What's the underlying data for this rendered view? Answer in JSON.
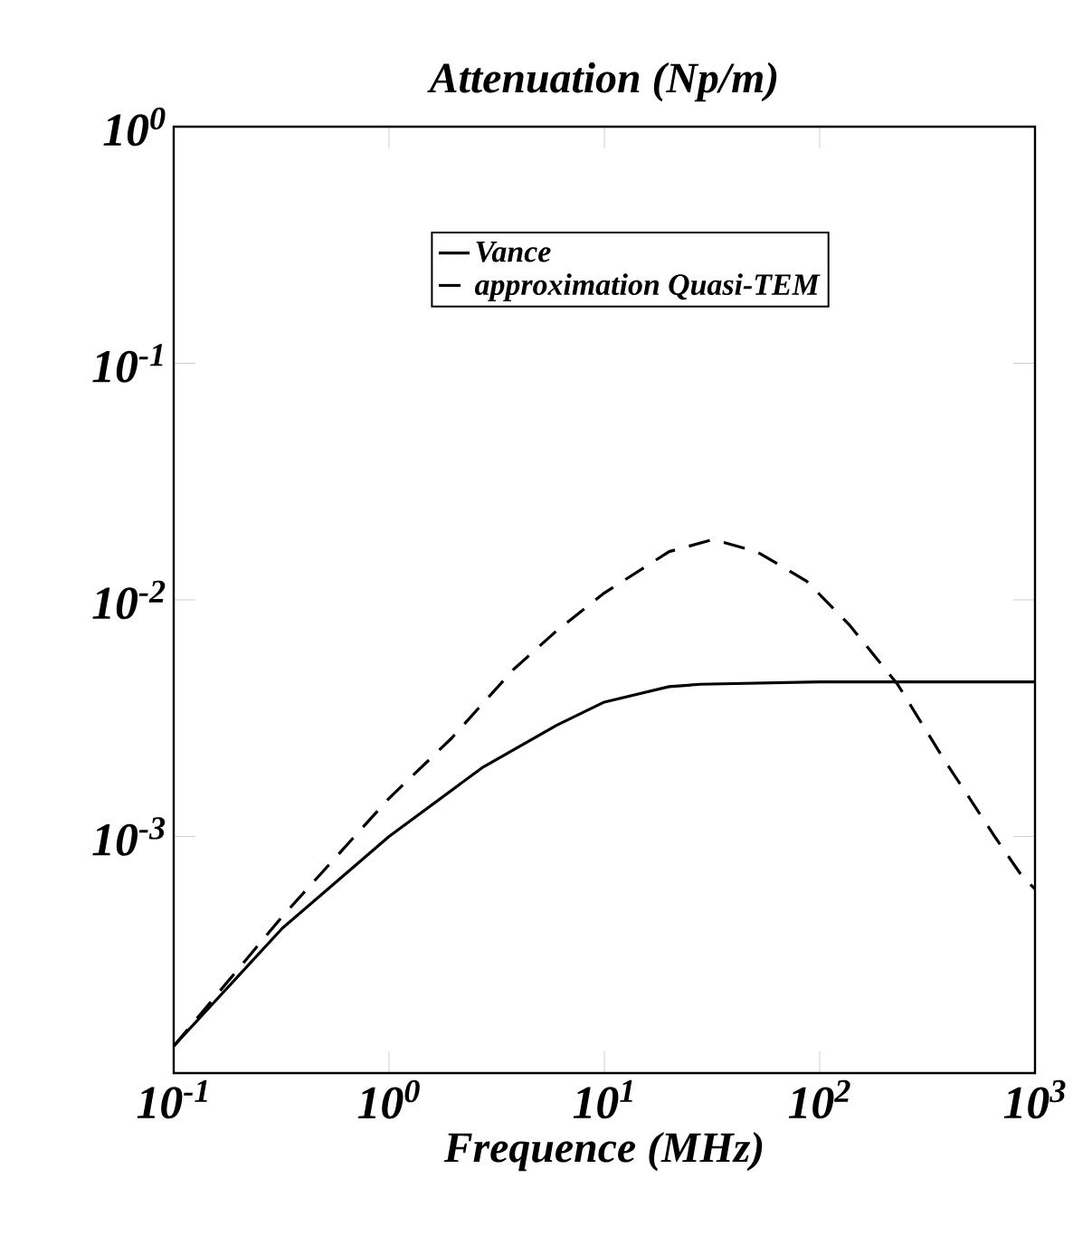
{
  "chart_data": {
    "type": "line",
    "title": "Attenuation (Np/m)",
    "xlabel": "Frequence (MHz)",
    "log": "xy",
    "xlim": [
      0.1,
      1000
    ],
    "ylim": [
      0.0001,
      1
    ],
    "xticks": [
      {
        "value": 0.1,
        "label": "10$^{-1}$"
      },
      {
        "value": 1,
        "label": "10$^{0}$"
      },
      {
        "value": 10,
        "label": "10$^{1}$"
      },
      {
        "value": 100,
        "label": "10$^{2}$"
      },
      {
        "value": 1000,
        "label": "10$^{3}$"
      }
    ],
    "yticks": [
      {
        "value": 0.0001,
        "label": null
      },
      {
        "value": 0.001,
        "label": "10$^{-3}$"
      },
      {
        "value": 0.01,
        "label": "10$^{-2}$"
      },
      {
        "value": 0.1,
        "label": "10$^{-1}$"
      },
      {
        "value": 1,
        "label": "10$^{0}$"
      }
    ],
    "grid": false,
    "legend": "top",
    "marker": "none",
    "series": [
      {
        "name": "Vance",
        "color": "#000000",
        "line_style": "solid",
        "x": [
          0.1,
          0.32,
          1,
          2.7,
          6,
          10,
          20,
          28,
          100,
          1000
        ],
        "values": [
          0.00013,
          0.00041,
          0.001,
          0.00195,
          0.00295,
          0.0037,
          0.0043,
          0.0044,
          0.0045,
          0.0045
        ]
      },
      {
        "name": "approximation Quasi-TEM",
        "color": "#000000",
        "line_style": "dashed",
        "x": [
          0.1,
          0.32,
          1,
          1.95,
          3.8,
          6,
          10,
          20,
          32,
          51,
          87,
          138,
          230,
          380,
          650,
          870,
          1000
        ],
        "values": [
          0.00013,
          0.00046,
          0.00145,
          0.0026,
          0.0051,
          0.0074,
          0.0107,
          0.016,
          0.018,
          0.016,
          0.012,
          0.0078,
          0.0044,
          0.0021,
          0.001,
          0.00068,
          0.0006
        ]
      }
    ]
  }
}
